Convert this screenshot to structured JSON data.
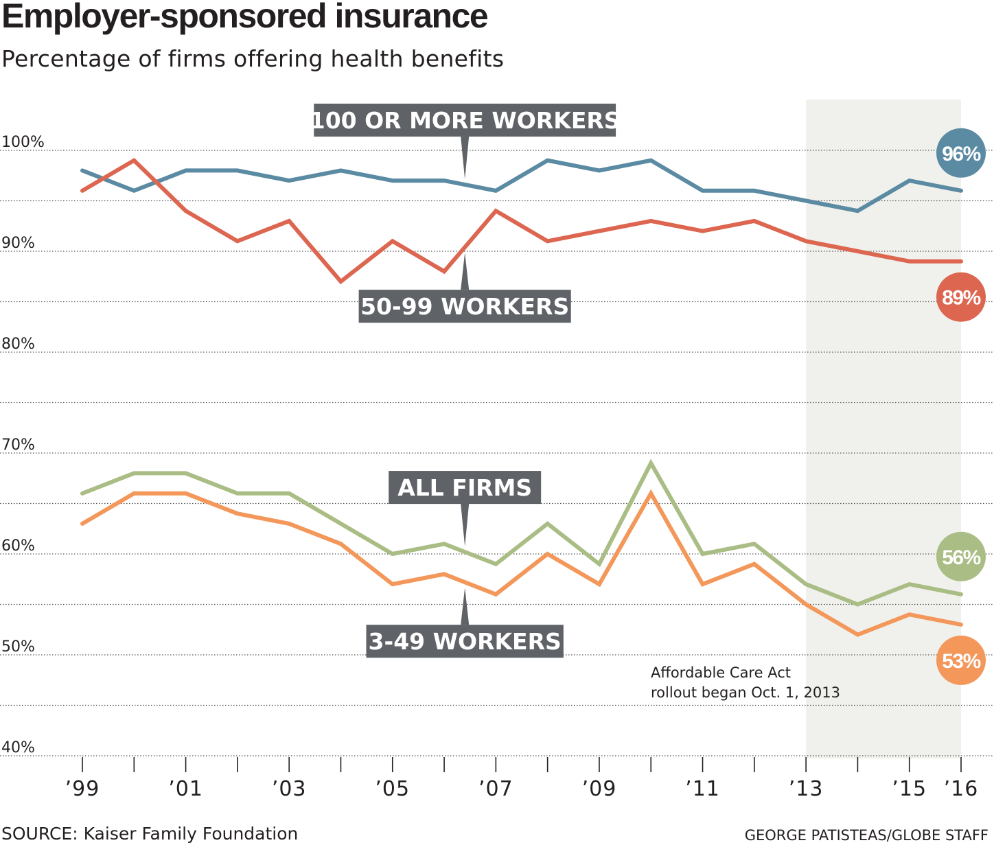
{
  "header": {
    "title": "Employer-sponsored insurance",
    "subtitle": "Percentage of firms offering health benefits"
  },
  "footer": {
    "source": "SOURCE: Kaiser Family Foundation",
    "credit": "GEORGE PATISTEAS/GLOBE STAFF"
  },
  "colors": {
    "background": "#ffffff",
    "shade": "#f0f1ec",
    "gridline": "#555555",
    "label_box": "#5f6367",
    "large_firms": "#5b8aa3",
    "mid_firms": "#dc6650",
    "all_firms": "#a9bd84",
    "small_firms": "#f3975a"
  },
  "chart_data": {
    "type": "line",
    "title": "Employer-sponsored insurance",
    "subtitle": "Percentage of firms offering health benefits",
    "x": [
      1999,
      2000,
      2001,
      2002,
      2003,
      2004,
      2005,
      2006,
      2007,
      2008,
      2009,
      2010,
      2011,
      2012,
      2013,
      2014,
      2015,
      2016
    ],
    "x_tick_values": [
      1999,
      2000,
      2001,
      2002,
      2003,
      2004,
      2005,
      2006,
      2007,
      2008,
      2009,
      2010,
      2011,
      2012,
      2013,
      2014,
      2015,
      2016
    ],
    "x_tick_labels": [
      {
        "value": 1999,
        "label": "’99"
      },
      {
        "value": 2001,
        "label": "’01"
      },
      {
        "value": 2003,
        "label": "’03"
      },
      {
        "value": 2005,
        "label": "’05"
      },
      {
        "value": 2007,
        "label": "’07"
      },
      {
        "value": 2009,
        "label": "’09"
      },
      {
        "value": 2011,
        "label": "’11"
      },
      {
        "value": 2013,
        "label": "’13"
      },
      {
        "value": 2015,
        "label": "’15"
      },
      {
        "value": 2016,
        "label": "’16"
      }
    ],
    "ylim": [
      40,
      105
    ],
    "y_gridlines": [
      40,
      45,
      50,
      55,
      60,
      65,
      70,
      75,
      80,
      85,
      90,
      95,
      100
    ],
    "y_tick_labels": [
      {
        "value": 100,
        "label": "100%"
      },
      {
        "value": 90,
        "label": "90%"
      },
      {
        "value": 80,
        "label": "80%"
      },
      {
        "value": 70,
        "label": "70%"
      },
      {
        "value": 60,
        "label": "60%"
      },
      {
        "value": 50,
        "label": "50%"
      },
      {
        "value": 40,
        "label": "40%"
      }
    ],
    "grid": true,
    "shaded_range": [
      2013,
      2016
    ],
    "annotation": [
      "Affordable Care Act",
      "rollout began Oct. 1, 2013"
    ],
    "series": [
      {
        "name": "100 OR MORE WORKERS",
        "color": "#5b8aa3",
        "values": [
          98,
          96,
          98,
          98,
          97,
          98,
          97,
          97,
          96,
          99,
          98,
          99,
          96,
          96,
          95,
          94,
          97,
          96
        ],
        "end_label": "96%",
        "label_year": 2006.4,
        "label_side": "above"
      },
      {
        "name": "50-99 WORKERS",
        "color": "#dc6650",
        "values": [
          96,
          99,
          94,
          91,
          93,
          87,
          91,
          88,
          94,
          91,
          92,
          93,
          92,
          93,
          91,
          90,
          89,
          89
        ],
        "end_label": "89%",
        "label_year": 2006.4,
        "label_side": "below"
      },
      {
        "name": "ALL FIRMS",
        "color": "#a9bd84",
        "values": [
          66,
          68,
          68,
          66,
          66,
          63,
          60,
          61,
          59,
          63,
          59,
          69,
          60,
          61,
          57,
          55,
          57,
          56
        ],
        "end_label": "56%",
        "label_year": 2006.4,
        "label_side": "above"
      },
      {
        "name": "3-49 WORKERS",
        "color": "#f3975a",
        "values": [
          63,
          66,
          66,
          64,
          63,
          61,
          57,
          58,
          56,
          60,
          57,
          66,
          57,
          59,
          55,
          52,
          54,
          53
        ],
        "end_label": "53%",
        "label_year": 2006.4,
        "label_side": "below"
      }
    ]
  }
}
